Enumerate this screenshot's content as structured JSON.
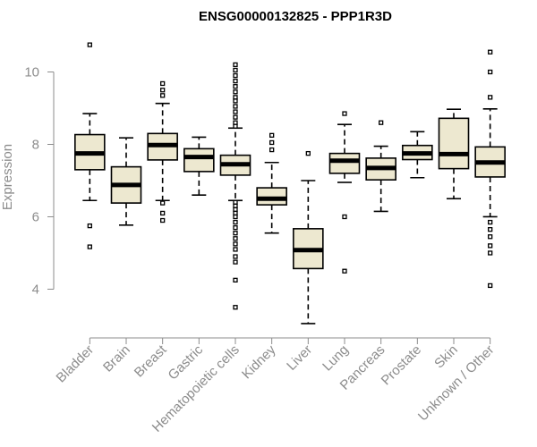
{
  "chart_data": {
    "type": "boxplot",
    "title": "ENSG00000132825 - PPP1R3D",
    "xlabel": "",
    "ylabel": "Expression",
    "ylim": [
      2.95,
      11.0
    ],
    "yticks": [
      4,
      6,
      8,
      10
    ],
    "grid": false,
    "colors": {
      "box_fill": "#ede8d0",
      "stroke": "#000000",
      "axis": "#8c8c8c"
    },
    "categories": [
      "Bladder",
      "Brain",
      "Breast",
      "Gastric",
      "Hematopoietic cells",
      "Kidney",
      "Liver",
      "Lung",
      "Pancreas",
      "Prostate",
      "Skin",
      "Unknown / Other"
    ],
    "boxes": [
      {
        "name": "Bladder",
        "whisker_low": 6.45,
        "q1": 7.3,
        "median": 7.75,
        "q3": 8.27,
        "whisker_high": 8.85,
        "outliers": [
          10.75,
          5.75,
          5.17
        ]
      },
      {
        "name": "Brain",
        "whisker_low": 5.77,
        "q1": 6.38,
        "median": 6.88,
        "q3": 7.38,
        "whisker_high": 8.18,
        "outliers": []
      },
      {
        "name": "Breast",
        "whisker_low": 6.45,
        "q1": 7.57,
        "median": 7.98,
        "q3": 8.3,
        "whisker_high": 9.13,
        "outliers": [
          9.68,
          9.5,
          9.35,
          6.38,
          6.1,
          5.9
        ]
      },
      {
        "name": "Gastric",
        "whisker_low": 6.6,
        "q1": 7.25,
        "median": 7.65,
        "q3": 7.88,
        "whisker_high": 8.2,
        "outliers": []
      },
      {
        "name": "Hematopoietic cells",
        "whisker_low": 6.45,
        "q1": 7.15,
        "median": 7.45,
        "q3": 7.7,
        "whisker_high": 8.45,
        "outliers": [
          10.2,
          10.05,
          9.9,
          9.75,
          9.6,
          9.45,
          9.3,
          9.2,
          9.05,
          8.9,
          8.75,
          8.6,
          8.5,
          6.4,
          6.3,
          6.2,
          6.1,
          6.0,
          5.85,
          5.7,
          5.55,
          5.4,
          5.25,
          5.1,
          4.9,
          4.75,
          4.25,
          3.5
        ]
      },
      {
        "name": "Kidney",
        "whisker_low": 5.55,
        "q1": 6.33,
        "median": 6.5,
        "q3": 6.8,
        "whisker_high": 7.5,
        "outliers": [
          8.25,
          8.05,
          7.85
        ]
      },
      {
        "name": "Liver",
        "whisker_low": 3.05,
        "q1": 4.57,
        "median": 5.08,
        "q3": 5.67,
        "whisker_high": 7.0,
        "outliers": [
          7.75
        ]
      },
      {
        "name": "Lung",
        "whisker_low": 6.95,
        "q1": 7.2,
        "median": 7.55,
        "q3": 7.75,
        "whisker_high": 8.55,
        "outliers": [
          8.85,
          6.0,
          4.5
        ]
      },
      {
        "name": "Pancreas",
        "whisker_low": 6.15,
        "q1": 7.02,
        "median": 7.35,
        "q3": 7.62,
        "whisker_high": 7.95,
        "outliers": [
          8.6
        ]
      },
      {
        "name": "Prostate",
        "whisker_low": 7.08,
        "q1": 7.58,
        "median": 7.75,
        "q3": 7.97,
        "whisker_high": 8.35,
        "outliers": []
      },
      {
        "name": "Skin",
        "whisker_low": 6.5,
        "q1": 7.33,
        "median": 7.73,
        "q3": 8.72,
        "whisker_high": 8.97,
        "outliers": []
      },
      {
        "name": "Unknown / Other",
        "whisker_low": 6.0,
        "q1": 7.1,
        "median": 7.5,
        "q3": 7.93,
        "whisker_high": 8.98,
        "outliers": [
          10.55,
          10.0,
          9.3,
          5.85,
          5.65,
          5.45,
          5.2,
          5.0,
          4.1
        ]
      }
    ]
  }
}
